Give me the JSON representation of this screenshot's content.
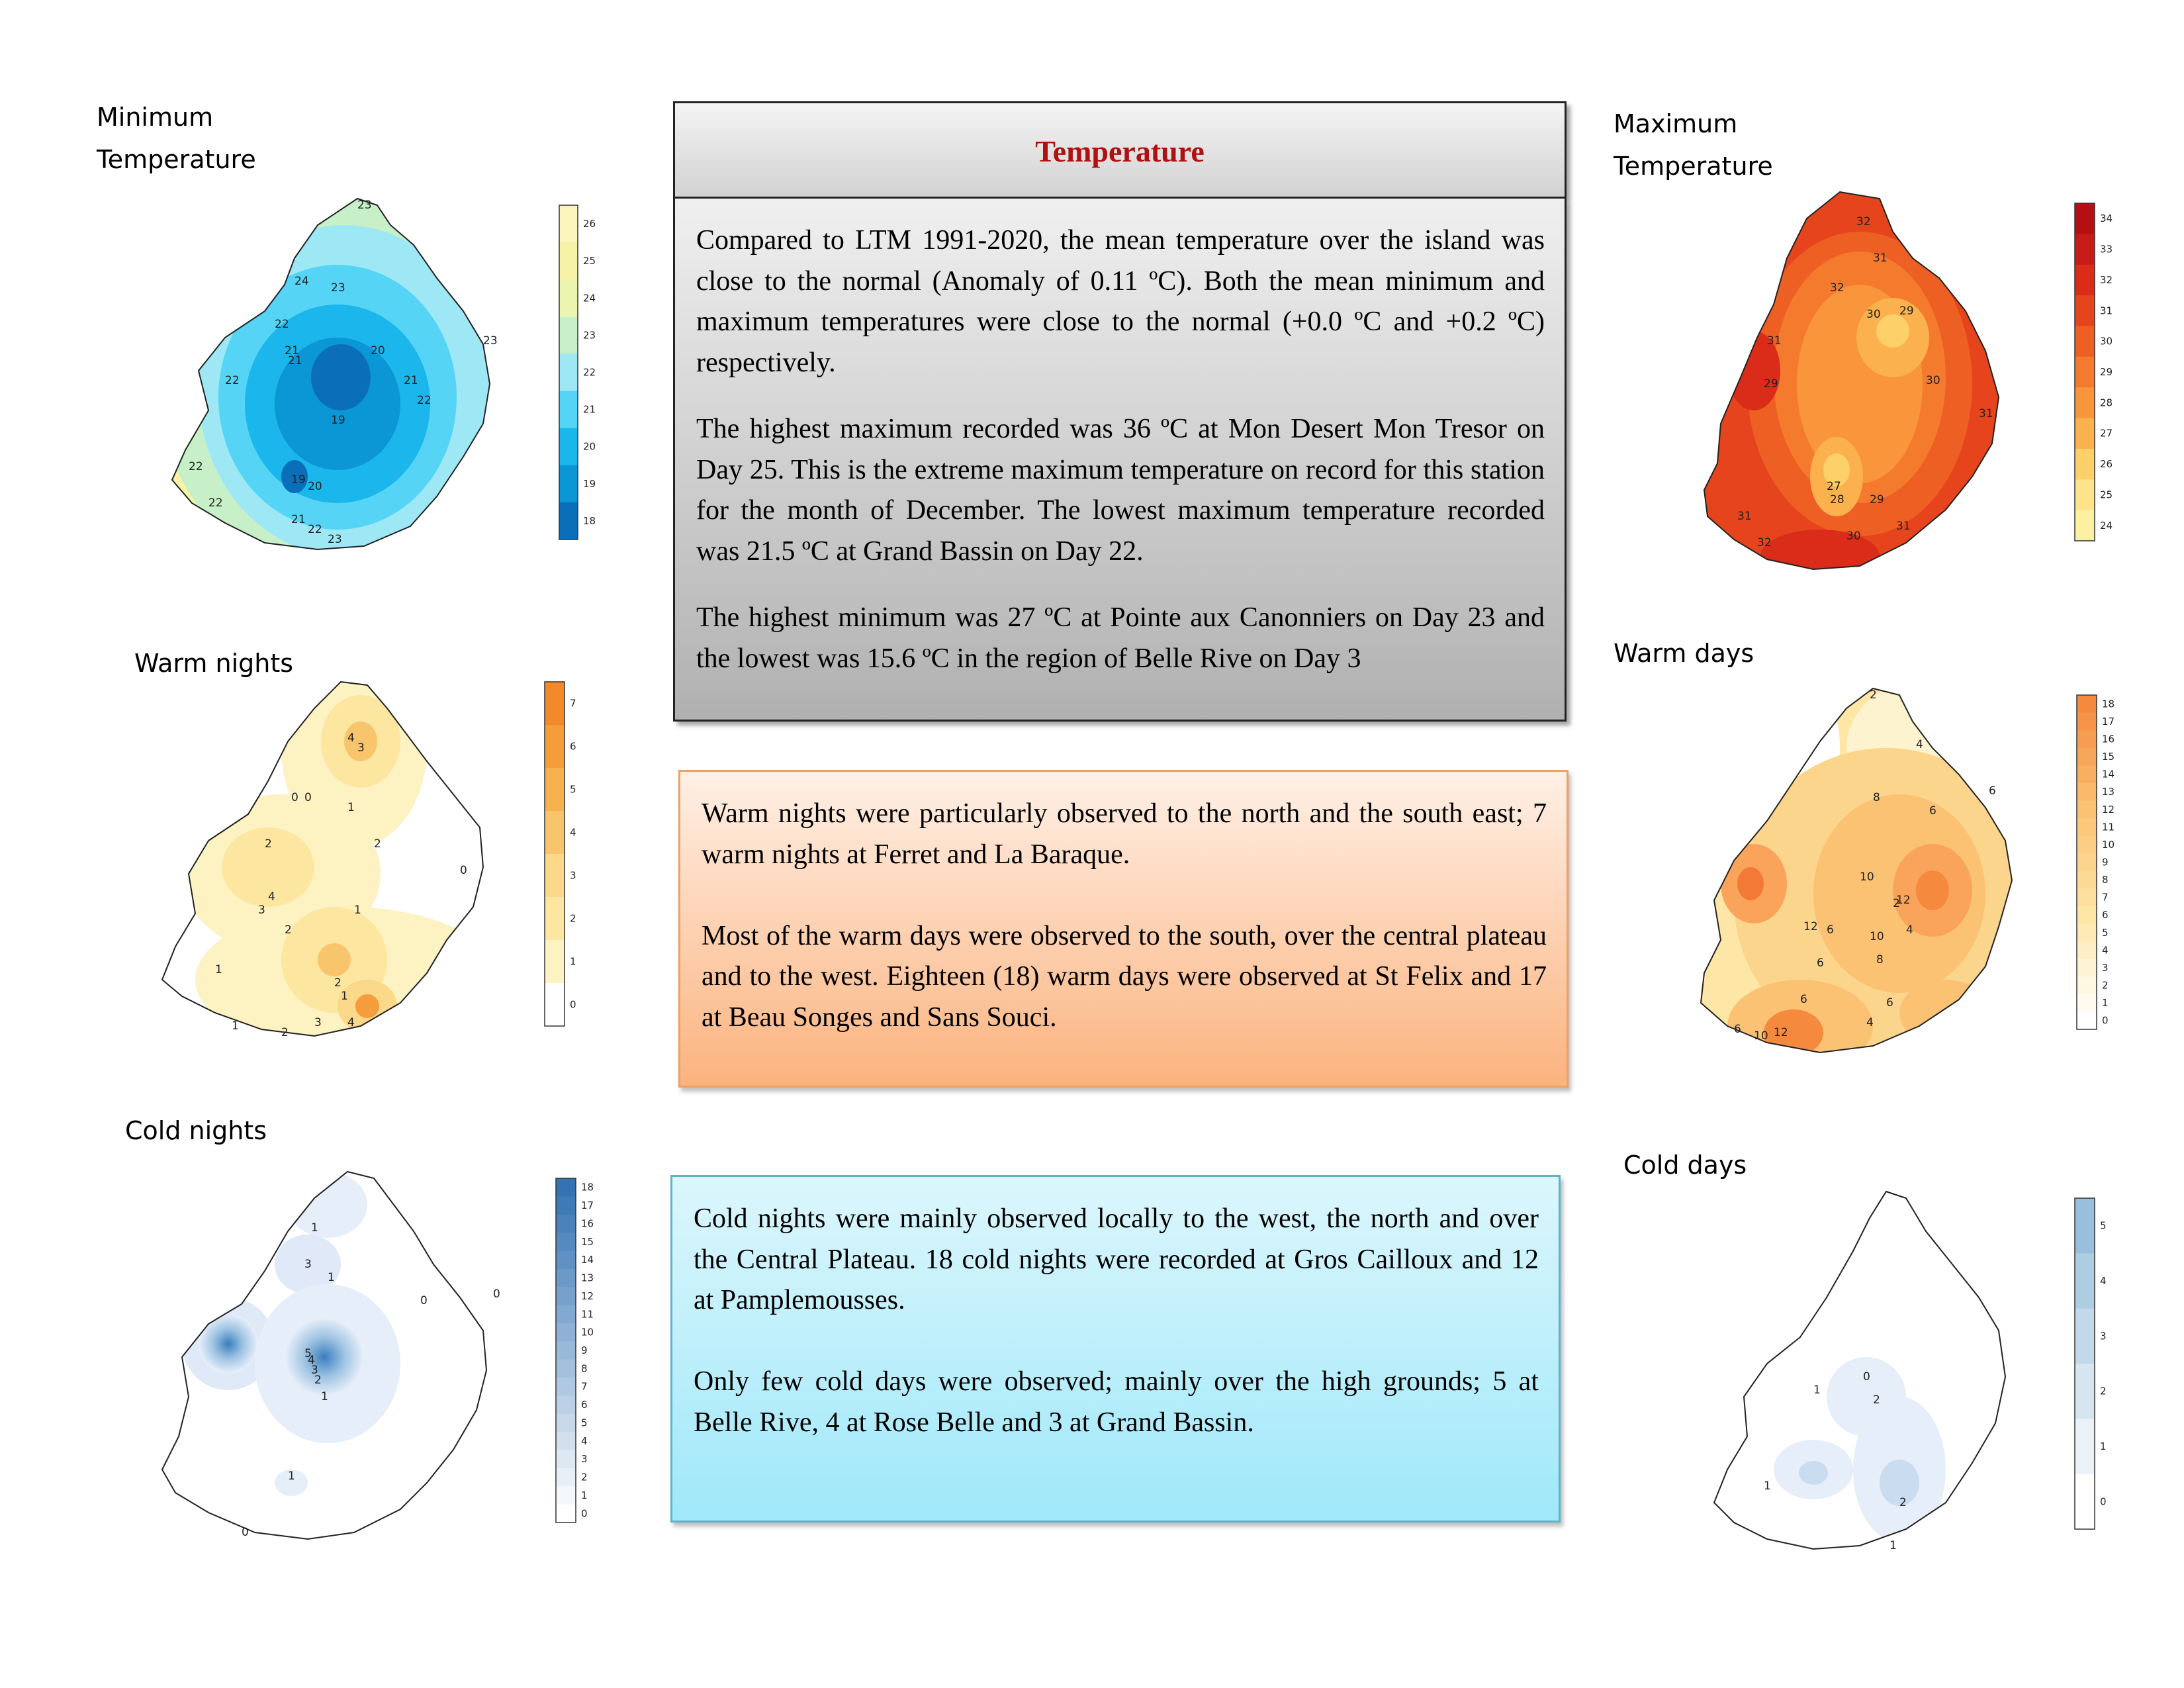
{
  "panels": {
    "min_temp": {
      "title": "Minimum\nTemperature",
      "scale": [
        "18",
        "19",
        "20",
        "21",
        "22",
        "23",
        "24",
        "25",
        "26"
      ],
      "contour_labels": [
        "23",
        "24",
        "22",
        "23",
        "21",
        "21",
        "22",
        "20",
        "21",
        "22",
        "19",
        "22",
        "19",
        "22",
        "20",
        "21",
        "22",
        "23",
        "23"
      ]
    },
    "max_temp": {
      "title": "Maximum\nTemperature",
      "scale": [
        "24",
        "25",
        "26",
        "27",
        "28",
        "29",
        "30",
        "31",
        "32",
        "33",
        "34"
      ],
      "contour_labels": [
        "32",
        "31",
        "32",
        "30",
        "29",
        "31",
        "29",
        "30",
        "31",
        "27",
        "28",
        "29",
        "31",
        "32",
        "30",
        "31"
      ]
    },
    "warm_nights": {
      "title": "Warm nights",
      "scale": [
        "0",
        "1",
        "2",
        "3",
        "4",
        "5",
        "6",
        "7"
      ],
      "contour_labels": [
        "4",
        "3",
        "0",
        "0",
        "1",
        "2",
        "2",
        "4",
        "3",
        "2",
        "1",
        "0",
        "1",
        "2",
        "1",
        "1",
        "2",
        "3",
        "4"
      ]
    },
    "warm_days": {
      "title": "Warm days",
      "scale": [
        "0",
        "1",
        "2",
        "3",
        "4",
        "5",
        "6",
        "7",
        "8",
        "9",
        "10",
        "11",
        "12",
        "13",
        "14",
        "15",
        "16",
        "17",
        "18"
      ],
      "contour_labels": [
        "2",
        "4",
        "6",
        "6",
        "8",
        "10",
        "12",
        "2",
        "4",
        "6",
        "12",
        "10",
        "6",
        "8",
        "6",
        "4",
        "6",
        "6",
        "10",
        "12"
      ]
    },
    "cold_nights": {
      "title": "Cold nights",
      "scale": [
        "0",
        "1",
        "2",
        "3",
        "4",
        "5",
        "6",
        "7",
        "8",
        "9",
        "10",
        "11",
        "12",
        "13",
        "14",
        "15",
        "16",
        "17",
        "18"
      ],
      "contour_labels": [
        "1",
        "3",
        "1",
        "0",
        "0",
        "5",
        "4",
        "3",
        "2",
        "1",
        "1",
        "0"
      ]
    },
    "cold_days": {
      "title": "Cold days",
      "scale": [
        "0",
        "1",
        "2",
        "3",
        "4",
        "5"
      ],
      "contour_labels": [
        "0",
        "1",
        "2",
        "1",
        "2",
        "1"
      ]
    }
  },
  "temperature_box": {
    "title": "Temperature",
    "paragraphs": [
      "Compared to LTM 1991-2020, the mean temperature over the island was close to the normal (Anomaly of 0.11 ºC). Both the mean minimum and maximum temperatures were close to the normal (+0.0 ºC and +0.2 ºC) respectively.",
      "The highest maximum recorded was 36 ºC at Mon Desert Mon Tresor on Day 25. This is the extreme maximum temperature on record for this station for the month of December. The lowest maximum temperature recorded was 21.5 ºC at Grand Bassin on Day 22.",
      "The highest minimum was 27 ºC at Pointe aux Canonniers on Day 23 and the lowest was 15.6  ºC in the region of Belle Rive on Day 3"
    ]
  },
  "warm_box": {
    "paragraphs": [
      "Warm nights were particularly observed to the north and the south east; 7 warm nights at Ferret and La Baraque.",
      "Most of the warm days were observed to the south, over the central plateau and to the west. Eighteen (18) warm days were observed at St Felix and 17 at Beau Songes and Sans Souci."
    ]
  },
  "cold_box": {
    "paragraphs": [
      "Cold nights were mainly observed locally to the west, the north and over the Central Plateau. 18 cold nights were recorded at Gros Cailloux and 12 at Pamplemousses.",
      "Only few cold days were observed; mainly over the high grounds; 5 at Belle Rive, 4 at Rose Belle and 3 at Grand Bassin."
    ]
  },
  "colors": {
    "min_temp": [
      "#0a6fb8",
      "#0b96d6",
      "#1ab6ec",
      "#55d4f5",
      "#9ee8f5",
      "#c8f0c8",
      "#ecf5b0",
      "#f7f3a6",
      "#fbf6bd"
    ],
    "max_temp": [
      "#fdf0a0",
      "#fde38a",
      "#fdd06a",
      "#fbb14d",
      "#f9953b",
      "#f47a2e",
      "#ee5f23",
      "#e6441c",
      "#da2c19",
      "#c81a16",
      "#b40f12"
    ],
    "warm_nights": [
      "#ffffff",
      "#fdf2c2",
      "#fce6a0",
      "#fbd88a",
      "#f9c56c",
      "#f7b24f",
      "#f59d3a",
      "#f28a2c"
    ],
    "cold_nights": [
      "#ffffff",
      "#3372b3"
    ],
    "cold_days": [
      "#ffffff",
      "#98c0dc"
    ]
  }
}
